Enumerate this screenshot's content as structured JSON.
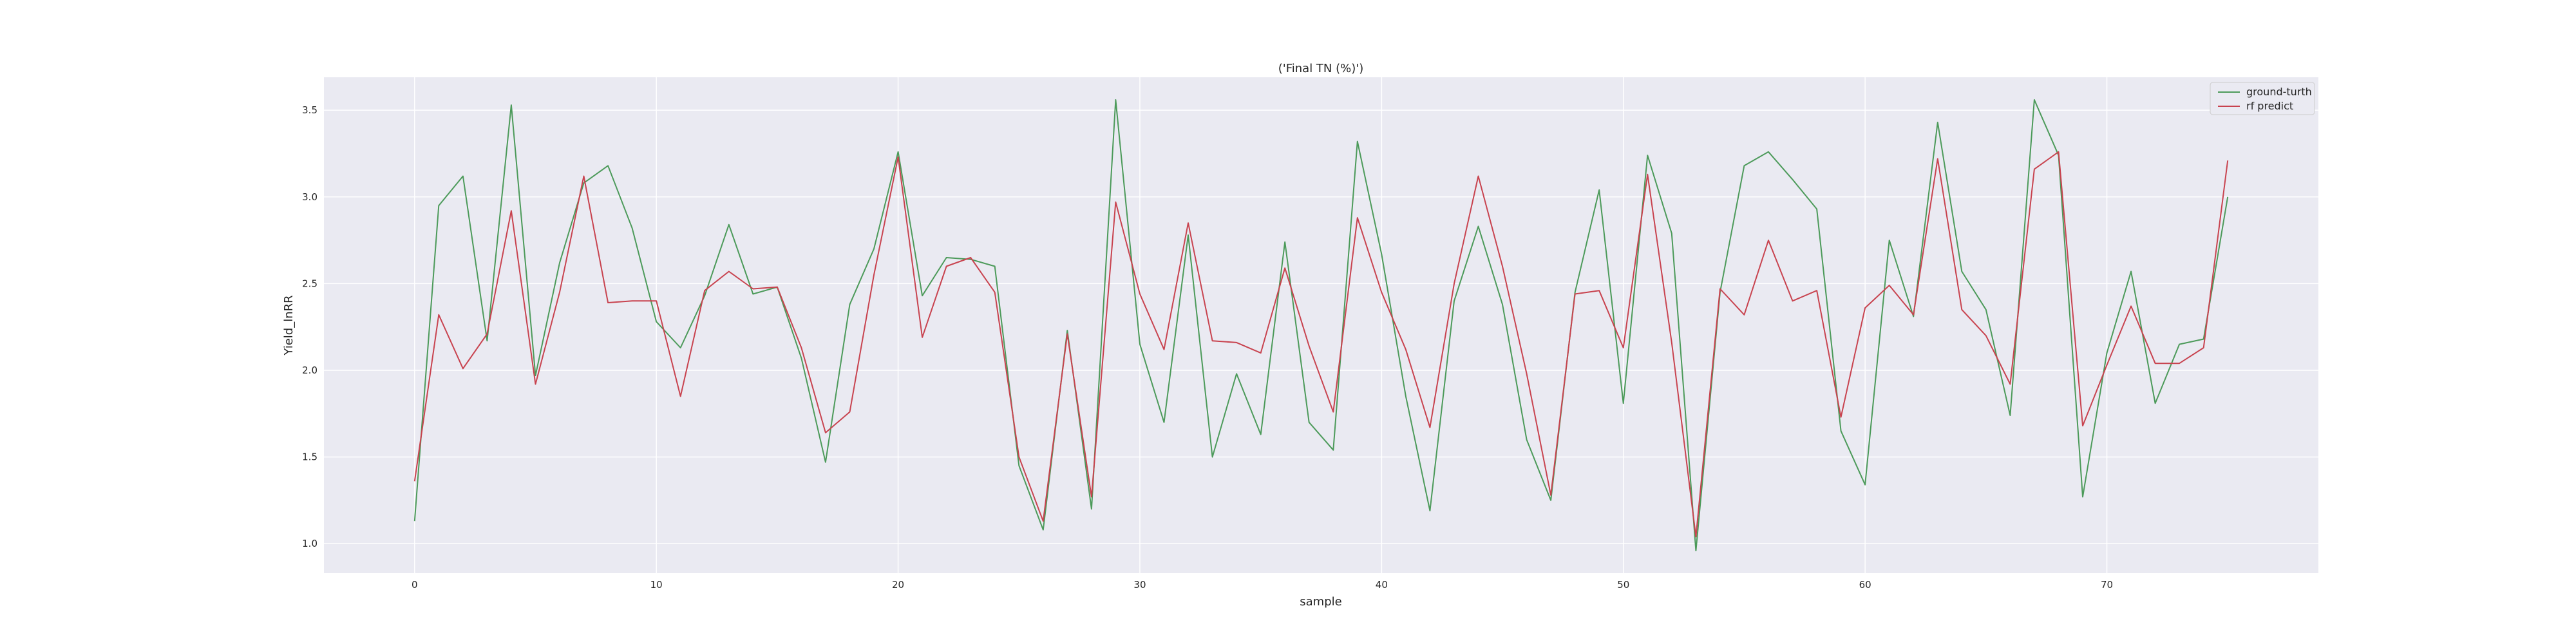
{
  "chart_data": {
    "type": "line",
    "title": "('Final TN (%)')",
    "xlabel": "sample",
    "ylabel": "Yield_lnRR",
    "xlim": [
      -3.75,
      78.75
    ],
    "ylim": [
      0.83,
      3.69
    ],
    "x_ticks": [
      0,
      10,
      20,
      30,
      40,
      50,
      60,
      70
    ],
    "y_ticks": [
      1.0,
      1.5,
      2.0,
      2.5,
      3.0,
      3.5
    ],
    "grid": true,
    "legend_position": "top-right",
    "series": [
      {
        "name": "ground-turth",
        "color": "#4c9a5a",
        "values": [
          1.13,
          2.95,
          3.12,
          2.17,
          3.53,
          1.97,
          2.62,
          3.08,
          3.18,
          2.82,
          2.28,
          2.13,
          2.43,
          2.84,
          2.44,
          2.48,
          2.07,
          1.47,
          2.38,
          2.7,
          3.26,
          2.43,
          2.65,
          2.64,
          2.6,
          1.45,
          1.08,
          2.23,
          1.2,
          3.56,
          2.15,
          1.7,
          2.78,
          1.5,
          1.98,
          1.63,
          2.74,
          1.7,
          1.54,
          3.32,
          2.67,
          1.85,
          1.19,
          2.4,
          2.83,
          2.38,
          1.6,
          1.25,
          2.45,
          3.04,
          1.81,
          3.24,
          2.79,
          0.96,
          2.45,
          3.18,
          3.26,
          3.1,
          2.93,
          1.65,
          1.34,
          2.75,
          2.31,
          3.43,
          2.57,
          2.35,
          1.74,
          3.56,
          3.24,
          1.27,
          2.1,
          2.57,
          1.81,
          2.15,
          2.18,
          3.0
        ]
      },
      {
        "name": "rf predict",
        "color": "#c8434f",
        "values": [
          1.36,
          2.32,
          2.01,
          2.21,
          2.92,
          1.92,
          2.45,
          3.12,
          2.39,
          2.4,
          2.4,
          1.85,
          2.46,
          2.57,
          2.47,
          2.48,
          2.13,
          1.64,
          1.76,
          2.55,
          3.23,
          2.19,
          2.6,
          2.65,
          2.45,
          1.5,
          1.13,
          2.21,
          1.27,
          2.97,
          2.44,
          2.12,
          2.85,
          2.17,
          2.16,
          2.1,
          2.59,
          2.14,
          1.76,
          2.88,
          2.45,
          2.12,
          1.67,
          2.5,
          3.12,
          2.6,
          1.98,
          1.28,
          2.44,
          2.46,
          2.13,
          3.13,
          2.16,
          1.04,
          2.47,
          2.32,
          2.75,
          2.4,
          2.46,
          1.73,
          2.36,
          2.49,
          2.32,
          3.22,
          2.35,
          2.2,
          1.92,
          3.16,
          3.26,
          1.68,
          2.03,
          2.37,
          2.04,
          2.04,
          2.13,
          3.21
        ]
      }
    ]
  }
}
